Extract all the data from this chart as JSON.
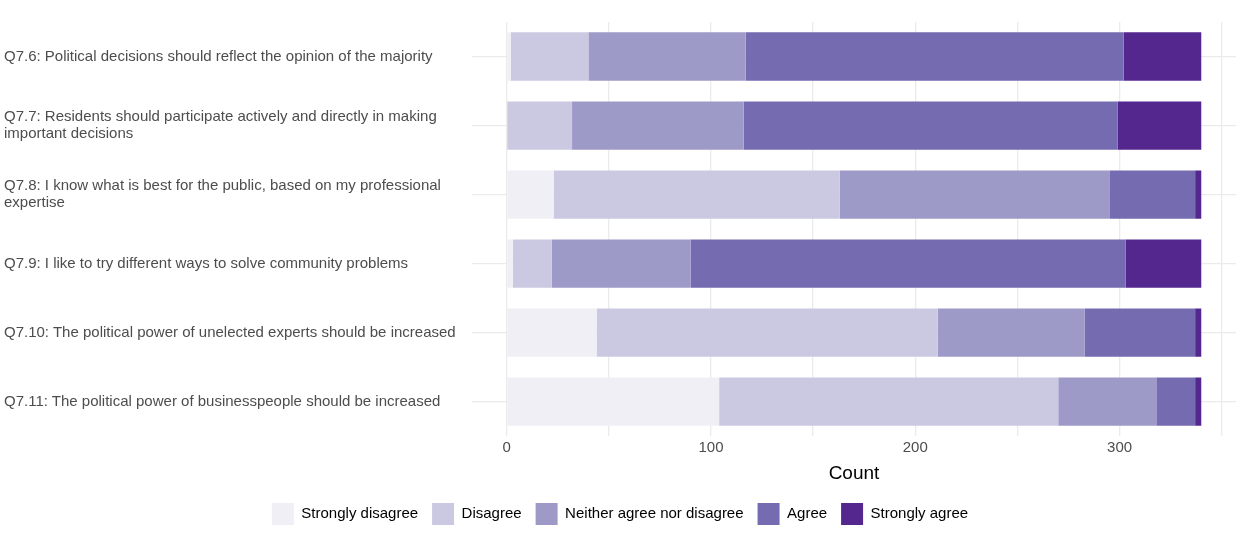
{
  "chart_data": {
    "type": "bar",
    "orientation": "horizontal",
    "stacked": true,
    "xlabel": "Count",
    "categories": [
      "Q7.6: Political decisions should reflect the opinion of the majority",
      "Q7.7: Residents should participate actively and directly in making important decisions",
      "Q7.8: I know what is best for the public, based on my professional expertise",
      "Q7.9: I like to try different ways to solve community problems",
      "Q7.10: The political power of unelected experts should be increased",
      "Q7.11: The political power of businesspeople should be increased"
    ],
    "series": [
      {
        "name": "Strongly disagree",
        "color": "#f0eff6",
        "values": [
          2,
          0,
          23,
          3,
          44,
          104
        ]
      },
      {
        "name": "Disagree",
        "color": "#cbc9e2",
        "values": [
          38,
          32,
          140,
          19,
          167,
          166
        ]
      },
      {
        "name": "Neither agree nor disagree",
        "color": "#9e9ac8",
        "values": [
          77,
          84,
          132,
          68,
          72,
          48
        ]
      },
      {
        "name": "Agree",
        "color": "#756bb1",
        "values": [
          185,
          183,
          42,
          213,
          54,
          19
        ]
      },
      {
        "name": "Strongly agree",
        "color": "#54278f",
        "values": [
          38,
          41,
          3,
          37,
          3,
          3
        ]
      }
    ],
    "xlim": [
      -17,
      357
    ],
    "xticks": [
      0,
      {
        "value": 50,
        "label": null
      },
      100,
      {
        "value": 150,
        "label": null
      },
      200,
      {
        "value": 250,
        "label": null
      },
      300,
      {
        "value": 350,
        "label": null
      }
    ],
    "grid": true,
    "legend": "bottom"
  }
}
